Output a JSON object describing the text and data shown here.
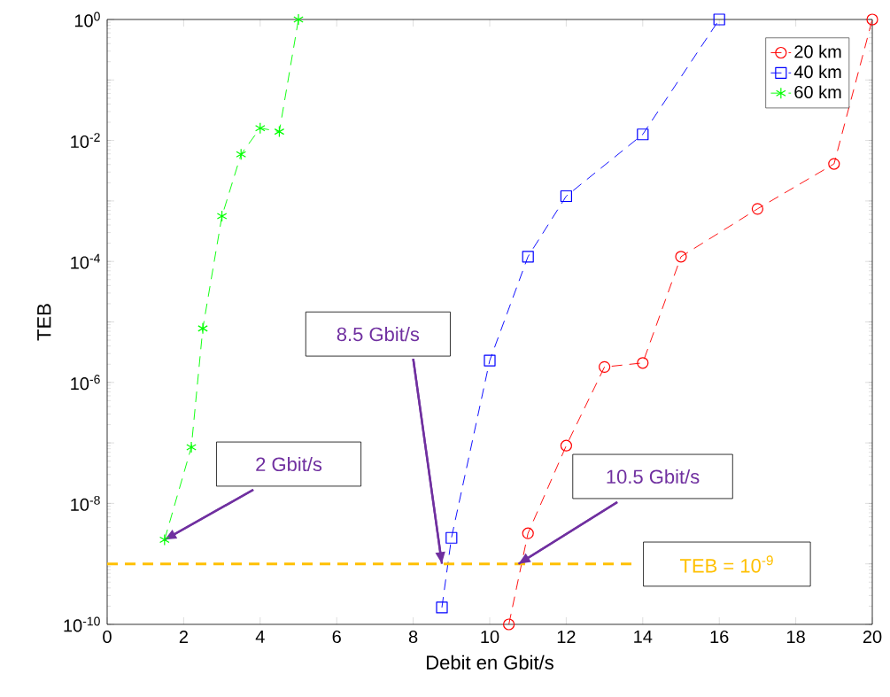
{
  "chart_data": {
    "type": "line",
    "xlabel": "Debit en Gbit/s",
    "ylabel": "TEB",
    "log": "y",
    "legend": "top right",
    "grid": false,
    "line_style": "dashed",
    "xlim": [
      0,
      20
    ],
    "ylim": [
      1e-10,
      1
    ],
    "xticks": [
      0,
      2,
      4,
      6,
      8,
      10,
      12,
      14,
      16,
      18,
      20
    ],
    "yticks": [
      {
        "value": 1e-10,
        "label": "10$^{-10}$"
      },
      {
        "value": 1e-09,
        "label": null
      },
      {
        "value": 1e-08,
        "label": "10$^{-8}$"
      },
      {
        "value": 1e-07,
        "label": null
      },
      {
        "value": 1e-06,
        "label": "10$^{-6}$"
      },
      {
        "value": 1e-05,
        "label": null
      },
      {
        "value": 0.0001,
        "label": "10$^{-4}$"
      },
      {
        "value": 0.001,
        "label": null
      },
      {
        "value": 0.01,
        "label": "10$^{-2}$"
      },
      {
        "value": 0.1,
        "label": null
      },
      {
        "value": 1,
        "label": "10$^{0}$"
      }
    ],
    "series": [
      {
        "name": "20 km",
        "color": "#ff0000",
        "marker": "circle",
        "x": [
          10.5,
          11,
          12,
          13,
          14,
          15,
          17,
          19,
          20
        ],
        "values": [
          1e-10,
          3.2e-09,
          9e-08,
          1.8e-06,
          2.1e-06,
          0.00012,
          0.00074,
          0.0041,
          1
        ]
      },
      {
        "name": "40 km",
        "color": "#0000ff",
        "marker": "square",
        "x": [
          8.75,
          9,
          10,
          11,
          12,
          14,
          16
        ],
        "values": [
          1.9e-10,
          2.7e-09,
          2.3e-06,
          0.00012,
          0.0012,
          0.0126,
          1
        ]
      },
      {
        "name": "60 km",
        "color": "#00ff00",
        "marker": "cross",
        "x": [
          1.5,
          2.2,
          2.5,
          3,
          3.5,
          4,
          4.5,
          5
        ],
        "values": [
          2.5e-09,
          8.5e-08,
          7.8e-06,
          0.00056,
          0.0059,
          0.016,
          0.014,
          1
        ]
      }
    ],
    "ref_lines": [
      {
        "axis": "y",
        "value": 1e-09,
        "color": "#ffc000",
        "line_style": "dashed"
      }
    ],
    "annotations": [
      {
        "text": "2 Gbit/s",
        "x": 1.5,
        "y": 2.5e-09
      },
      {
        "text": "8.5 Gbit/s",
        "x": 8.75,
        "y": 1e-09
      },
      {
        "text": "10.5 Gbit/s",
        "x": 10.75,
        "y": 1e-09
      },
      "TEB = 10$^{-9}$"
    ]
  }
}
